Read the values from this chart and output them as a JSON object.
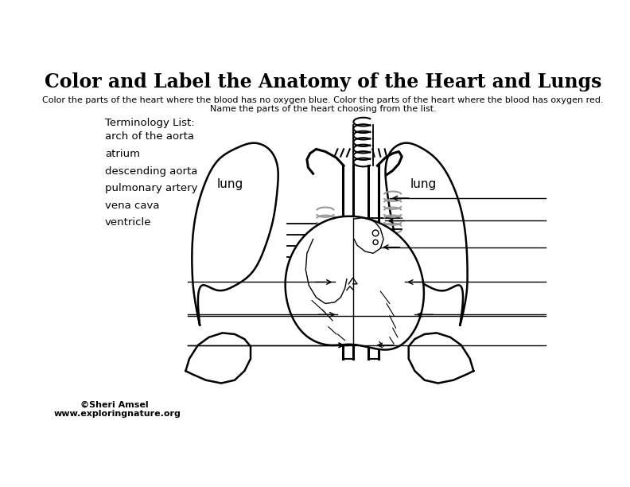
{
  "title": "Color and Label the Anatomy of the Heart and Lungs",
  "subtitle_line1": "Color the parts of the heart where the blood has no oxygen blue. Color the parts of the heart where the blood has oxygen red.",
  "subtitle_line2": "Name the parts of the heart choosing from the list.",
  "terminology_header": "Terminology List:",
  "terminology_items": [
    "arch of the aorta",
    "atrium",
    "descending aorta",
    "pulmonary artery",
    "vena cava",
    "ventricle"
  ],
  "lung_left_label": "lung",
  "lung_right_label": "lung",
  "copyright_line1": "©Sheri Amsel",
  "copyright_line2": "www.exploringnature.org",
  "bg_color": "#ffffff",
  "title_fontsize": 17,
  "subtitle_fontsize": 8,
  "terminology_fontsize": 9.5,
  "copyright_fontsize": 8,
  "lung_label_fontsize": 11
}
